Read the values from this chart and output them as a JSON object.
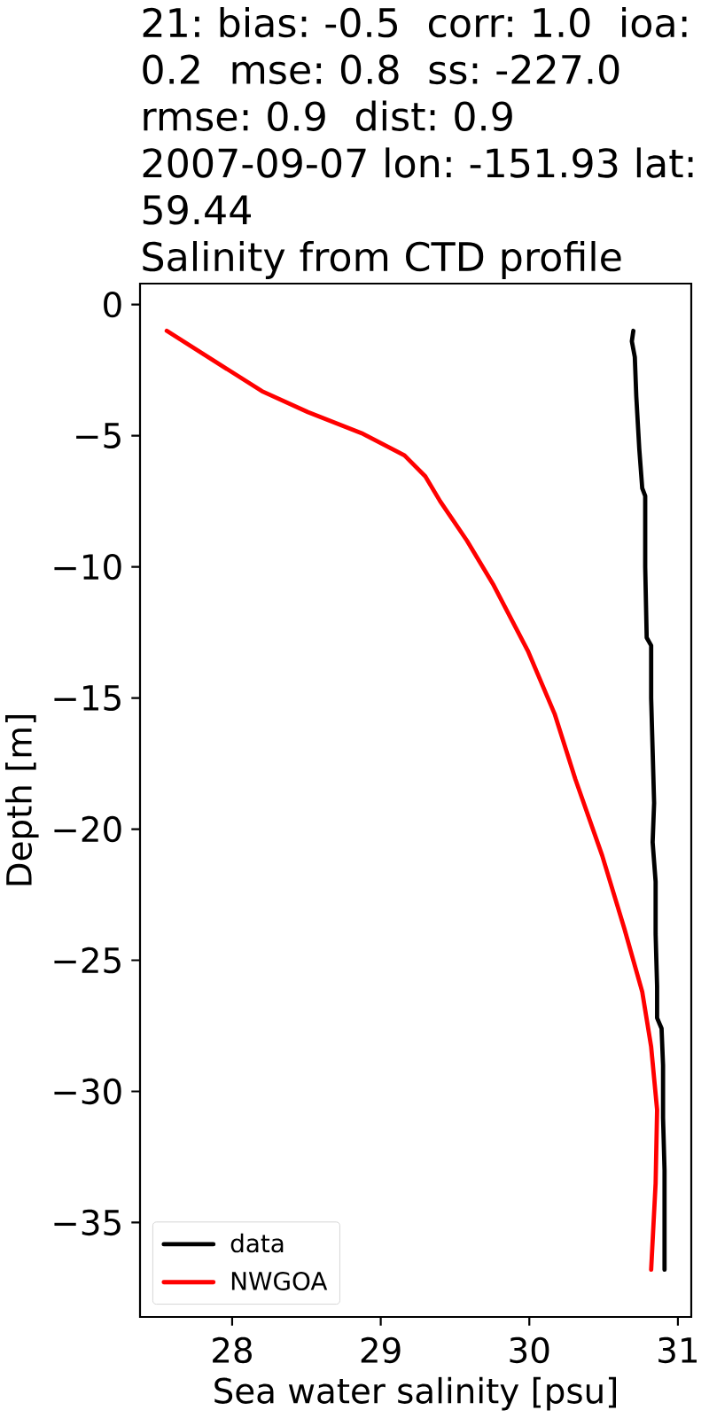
{
  "chart_data": {
    "type": "line",
    "title": "21: bias: -0.5  corr: 1.0  ioa: 0.2  mse: 0.8  ss: -227.0  rmse: 0.9  dist: 0.9",
    "subtitle": "2007-09-07 lon: -151.93 lat: 59.44",
    "annotations": [
      "Salinity from CTD profile"
    ],
    "xlabel": "Sea water salinity [psu]",
    "ylabel": "Depth [m]",
    "xlim": [
      27.38,
      31.09
    ],
    "ylim": [
      -38.6,
      0.8
    ],
    "xticks": [
      28,
      29,
      30,
      31
    ],
    "yticks": [
      0,
      {
        "value": -5,
        "label": "−5"
      },
      {
        "value": -10,
        "label": "−10"
      },
      {
        "value": -15,
        "label": "−15"
      },
      {
        "value": -20,
        "label": "−20"
      },
      {
        "value": -25,
        "label": "−25"
      },
      {
        "value": -30,
        "label": "−30"
      },
      {
        "value": -35,
        "label": "−35"
      }
    ],
    "legend": "bottom left",
    "series": [
      {
        "name": "data",
        "color": "#000000",
        "x": [
          30.7,
          30.69,
          30.71,
          30.72,
          30.74,
          30.76,
          30.78,
          30.78,
          30.79,
          30.82,
          30.82,
          30.84,
          30.83,
          30.85,
          30.85,
          30.86,
          30.86,
          30.89,
          30.9,
          30.9,
          30.91,
          30.91
        ],
        "values": [
          -1.0,
          -1.4,
          -2.0,
          -3.5,
          -5.5,
          -7.0,
          -7.3,
          -10.0,
          -12.7,
          -13.0,
          -15.0,
          -19.0,
          -20.5,
          -22.0,
          -24.0,
          -26.0,
          -27.2,
          -27.6,
          -29.0,
          -31.0,
          -33.0,
          -36.8
        ]
      },
      {
        "name": "NWGOA",
        "color": "#ff0000",
        "x": [
          27.56,
          28.2,
          28.51,
          28.87,
          29.16,
          29.3,
          29.4,
          29.58,
          29.76,
          29.99,
          30.17,
          30.31,
          30.49,
          30.64,
          30.76,
          30.82,
          30.86,
          30.85,
          30.82
        ],
        "values": [
          -1.0,
          -3.3,
          -4.1,
          -4.9,
          -5.75,
          -6.55,
          -7.5,
          -9.0,
          -10.7,
          -13.2,
          -15.6,
          -18.1,
          -21.0,
          -23.8,
          -26.2,
          -28.3,
          -30.7,
          -33.5,
          -36.8
        ]
      }
    ]
  }
}
